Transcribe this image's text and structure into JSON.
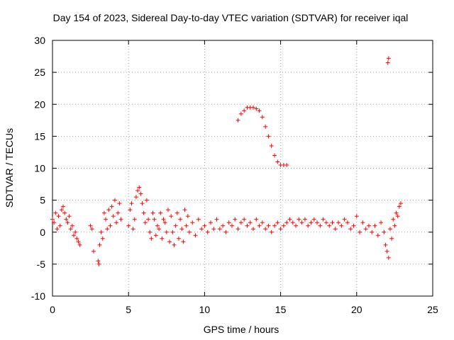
{
  "chart_data": {
    "type": "scatter",
    "title": "Day 154 of 2023, Sidereal Day-to-day VTEC variation (SDTVAR) for receiver iqal",
    "xlabel": "GPS time / hours",
    "ylabel": "SDTVAR / TECUs",
    "xlim": [
      0,
      25
    ],
    "ylim": [
      -10,
      30
    ],
    "xticks": [
      0,
      5,
      10,
      15,
      20,
      25
    ],
    "yticks": [
      -10,
      -5,
      0,
      5,
      10,
      15,
      20,
      25,
      30
    ],
    "xtick_labels": [
      "0",
      "5",
      "10",
      "15",
      "20",
      "25"
    ],
    "ytick_labels": [
      "-10",
      "-5",
      "0",
      "5",
      "10",
      "15",
      "20",
      "25",
      "30"
    ],
    "grid": true,
    "marker": "plus",
    "color": "#ff0000",
    "series": [
      {
        "name": "SDTVAR",
        "x": [
          0.0,
          0.1,
          0.2,
          0.3,
          0.4,
          0.5,
          0.6,
          0.7,
          0.8,
          0.9,
          1.0,
          1.1,
          1.2,
          1.3,
          1.4,
          1.5,
          1.6,
          1.7,
          1.8,
          2.5,
          2.6,
          2.7,
          3.0,
          3.05,
          3.1,
          3.2,
          3.3,
          3.4,
          3.5,
          3.6,
          3.7,
          3.8,
          3.9,
          4.0,
          4.1,
          4.2,
          4.3,
          4.4,
          4.5,
          5.0,
          5.1,
          5.2,
          5.3,
          5.4,
          5.5,
          5.6,
          5.7,
          5.8,
          5.9,
          6.0,
          6.1,
          6.2,
          6.3,
          6.4,
          6.5,
          6.6,
          6.7,
          6.8,
          6.9,
          7.0,
          7.1,
          7.2,
          7.3,
          7.4,
          7.5,
          7.6,
          7.7,
          7.8,
          7.9,
          8.0,
          8.1,
          8.2,
          8.3,
          8.4,
          8.5,
          8.6,
          8.7,
          8.8,
          8.9,
          9.0,
          9.2,
          9.4,
          9.6,
          9.8,
          10.0,
          10.2,
          10.4,
          10.6,
          10.8,
          11.0,
          11.2,
          11.4,
          11.6,
          11.8,
          12.0,
          12.2,
          12.4,
          12.6,
          12.8,
          13.0,
          13.2,
          13.4,
          13.6,
          13.8,
          14.0,
          14.2,
          14.4,
          14.6,
          14.8,
          15.0,
          15.2,
          15.4,
          15.6,
          15.8,
          16.0,
          16.2,
          16.4,
          16.6,
          16.8,
          17.0,
          17.2,
          17.4,
          17.6,
          17.8,
          18.0,
          18.2,
          18.4,
          18.6,
          18.8,
          19.0,
          19.2,
          19.4,
          19.6,
          19.8,
          20.0,
          20.2,
          20.4,
          20.6,
          20.8,
          21.0,
          21.2,
          21.4,
          21.6,
          21.8,
          21.9,
          22.0,
          22.1,
          22.2,
          22.3,
          22.4,
          22.5,
          22.6,
          22.7,
          22.8,
          22.9,
          12.2,
          12.4,
          12.6,
          12.8,
          13.0,
          13.2,
          13.4,
          13.6,
          13.8,
          14.0,
          14.2,
          14.4,
          14.6,
          14.8,
          15.0,
          15.2,
          15.4,
          22.05,
          22.1
        ],
        "y": [
          2.0,
          1.5,
          3.0,
          0.5,
          2.5,
          1.0,
          3.5,
          4.0,
          3.0,
          2.0,
          1.5,
          2.5,
          0.5,
          1.0,
          -0.5,
          0.0,
          -1.0,
          -1.5,
          -2.0,
          1.0,
          0.5,
          -3.0,
          -4.5,
          -5.0,
          -2.0,
          0.0,
          -1.0,
          3.0,
          2.0,
          0.5,
          3.5,
          1.0,
          4.0,
          2.5,
          5.0,
          1.5,
          3.0,
          4.5,
          2.0,
          1.0,
          3.5,
          4.5,
          0.5,
          2.0,
          5.5,
          6.5,
          7.0,
          6.0,
          4.5,
          3.0,
          1.5,
          5.0,
          2.0,
          0.0,
          -1.0,
          3.0,
          2.0,
          -0.5,
          1.0,
          0.5,
          3.0,
          -1.0,
          2.0,
          1.5,
          0.0,
          3.5,
          -1.5,
          2.5,
          0.0,
          -2.0,
          1.0,
          3.0,
          -1.0,
          2.0,
          0.5,
          -1.5,
          3.5,
          1.0,
          2.5,
          0.0,
          1.5,
          -0.5,
          2.0,
          0.5,
          1.0,
          0.0,
          1.5,
          0.5,
          2.0,
          0.5,
          1.0,
          0.0,
          1.5,
          1.0,
          2.0,
          0.5,
          1.5,
          2.0,
          1.0,
          1.5,
          0.5,
          2.0,
          1.0,
          1.5,
          0.5,
          1.0,
          0.0,
          1.0,
          1.5,
          0.5,
          1.0,
          1.5,
          2.0,
          1.5,
          1.0,
          2.0,
          1.5,
          2.0,
          1.0,
          1.5,
          2.0,
          1.5,
          1.0,
          2.0,
          1.5,
          1.0,
          1.5,
          0.5,
          1.5,
          1.0,
          2.0,
          1.5,
          0.5,
          1.0,
          2.5,
          0.0,
          1.5,
          0.5,
          1.0,
          0.0,
          1.0,
          -0.5,
          1.5,
          0.0,
          -2.0,
          -3.0,
          -4.0,
          0.5,
          -1.0,
          2.0,
          1.0,
          3.0,
          2.5,
          4.0,
          4.5,
          17.5,
          18.5,
          19.0,
          19.5,
          19.5,
          19.5,
          19.3,
          19.0,
          18.0,
          16.5,
          15.0,
          13.5,
          12.0,
          11.0,
          10.5,
          10.5,
          10.5,
          26.5,
          27.2
        ]
      }
    ]
  }
}
